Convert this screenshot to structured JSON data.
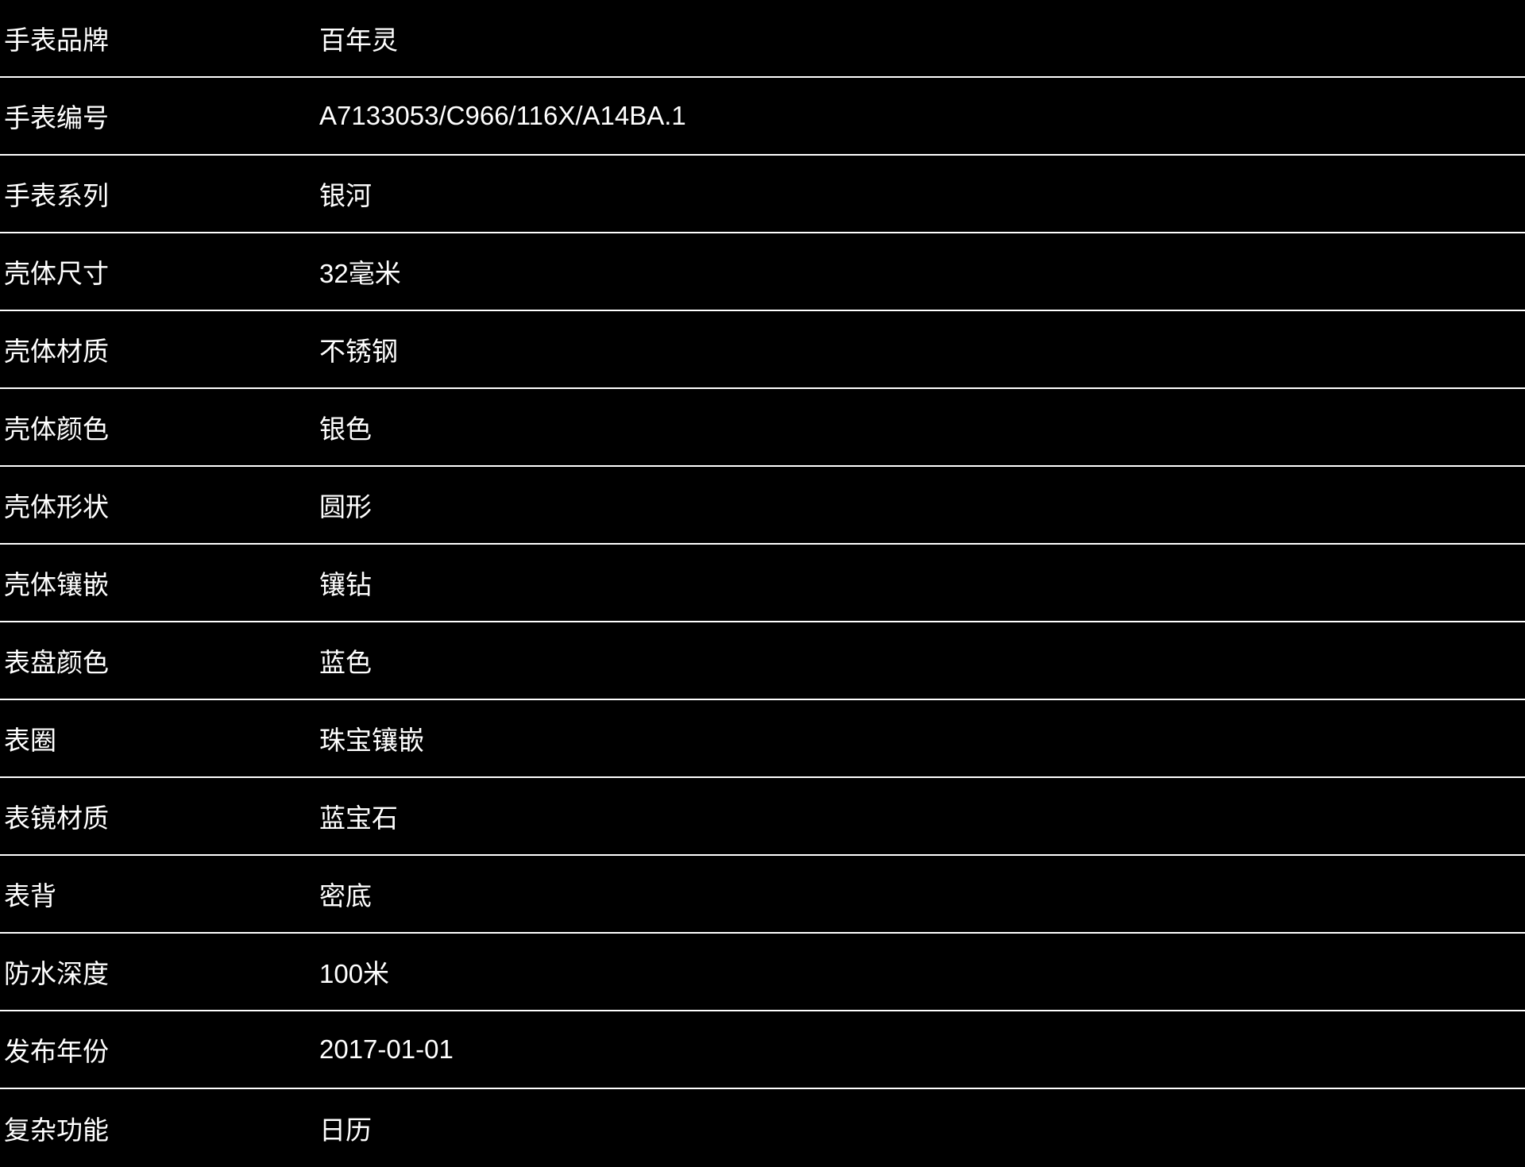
{
  "colors": {
    "background": "#000000",
    "text": "#ffffff",
    "divider": "#ffffff"
  },
  "table": {
    "rows": [
      {
        "label": "手表品牌",
        "value": "百年灵"
      },
      {
        "label": "手表编号",
        "value": "A7133053/C966/116X/A14BA.1"
      },
      {
        "label": "手表系列",
        "value": "银河"
      },
      {
        "label": "壳体尺寸",
        "value": "32毫米"
      },
      {
        "label": "壳体材质",
        "value": "不锈钢"
      },
      {
        "label": "壳体颜色",
        "value": "银色"
      },
      {
        "label": "壳体形状",
        "value": "圆形"
      },
      {
        "label": "壳体镶嵌",
        "value": "镶钻"
      },
      {
        "label": "表盘颜色",
        "value": "蓝色"
      },
      {
        "label": "表圈",
        "value": "珠宝镶嵌"
      },
      {
        "label": "表镜材质",
        "value": "蓝宝石"
      },
      {
        "label": "表背",
        "value": "密底"
      },
      {
        "label": "防水深度",
        "value": "100米"
      },
      {
        "label": "发布年份",
        "value": "2017-01-01"
      },
      {
        "label": "复杂功能",
        "value": "日历"
      }
    ]
  }
}
